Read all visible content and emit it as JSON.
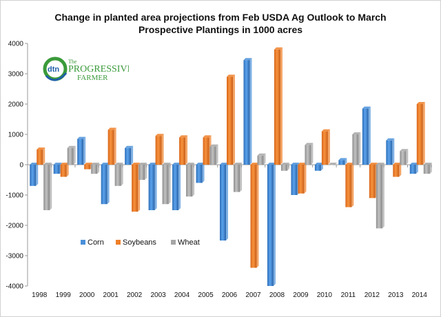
{
  "chart_data": {
    "type": "bar",
    "title_line1": "Change in planted area projections from Feb USDA Ag Outlook to March",
    "title_line2": "Prospective Plantings in 1000 acres",
    "categories": [
      "1998",
      "1999",
      "2000",
      "2001",
      "2002",
      "2003",
      "2004",
      "2005",
      "2006",
      "2007",
      "2008",
      "2009",
      "2010",
      "2011",
      "2012",
      "2013",
      "2014"
    ],
    "series": [
      {
        "name": "Corn",
        "color": "#4a90d9",
        "values": [
          -700,
          -300,
          850,
          -1300,
          550,
          -1500,
          -1500,
          -600,
          -2500,
          3450,
          -4000,
          -1000,
          -200,
          150,
          1850,
          800,
          -300
        ]
      },
      {
        "name": "Soybeans",
        "color": "#f07f27",
        "values": [
          500,
          -400,
          -150,
          1150,
          -1550,
          950,
          900,
          900,
          2900,
          -3400,
          3800,
          -950,
          1100,
          -1400,
          -1100,
          -400,
          2000
        ]
      },
      {
        "name": "Wheat",
        "color": "#a6a6a6",
        "values": [
          -1500,
          550,
          -300,
          -700,
          -500,
          -1300,
          -1050,
          600,
          -900,
          300,
          -200,
          650,
          0,
          1000,
          -2100,
          450,
          -300
        ]
      }
    ],
    "yticks": [
      "4000",
      "3000",
      "2000",
      "1000",
      "0",
      "-1000",
      "-2000",
      "-3000",
      "-4000"
    ],
    "ylim": [
      -4000,
      4000
    ],
    "grid": false,
    "legend_position": "lower-left"
  },
  "logo": {
    "mark": "dtn",
    "brand_top": "The",
    "brand_main": "PROGRESSIVE",
    "brand_sub": "FARMER",
    "colors": {
      "green": "#3a9a3a",
      "blue": "#1f5fa8"
    }
  }
}
